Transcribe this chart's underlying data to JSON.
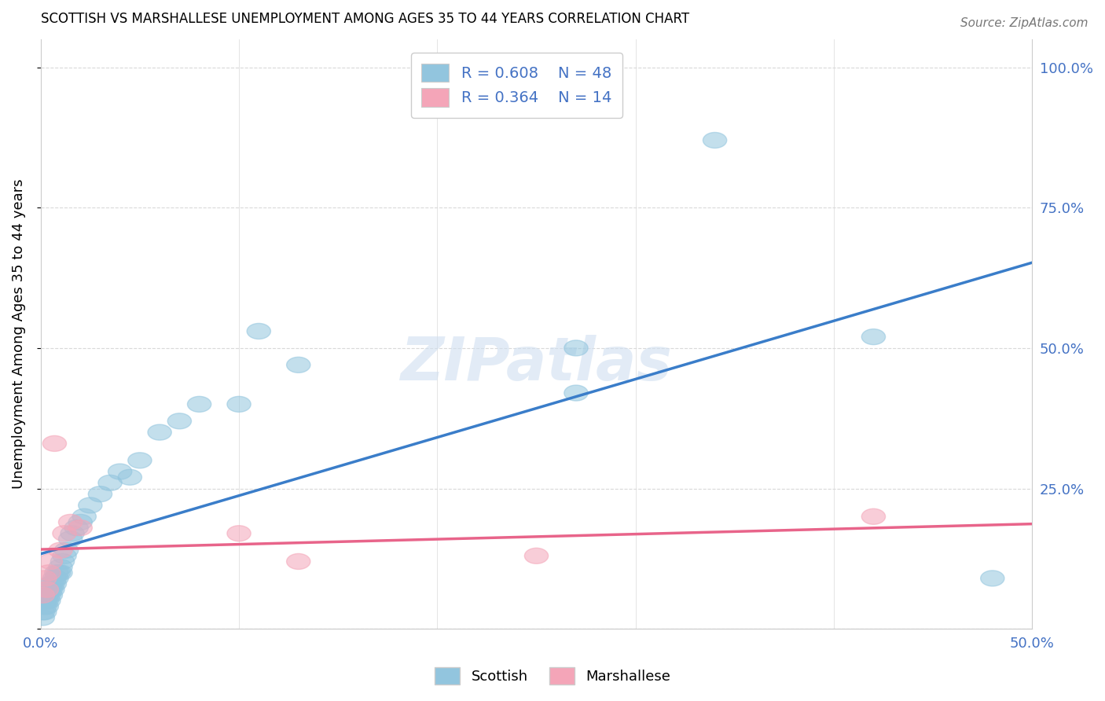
{
  "title": "SCOTTISH VS MARSHALLESE UNEMPLOYMENT AMONG AGES 35 TO 44 YEARS CORRELATION CHART",
  "source": "Source: ZipAtlas.com",
  "ylabel": "Unemployment Among Ages 35 to 44 years",
  "xlim": [
    0.0,
    0.5
  ],
  "ylim": [
    0.0,
    1.05
  ],
  "yticks": [
    0.25,
    0.5,
    0.75,
    1.0
  ],
  "ytick_labels": [
    "25.0%",
    "50.0%",
    "75.0%",
    "100.0%"
  ],
  "xtick_labels": [
    "0.0%",
    "50.0%"
  ],
  "xtick_positions": [
    0.0,
    0.5
  ],
  "scottish_color": "#92c5de",
  "marshallese_color": "#f4a5b8",
  "scottish_line_color": "#3a7dc9",
  "marshallese_line_color": "#e8648a",
  "watermark": "ZIPatlas",
  "tick_color": "#4472c4",
  "grid_color": "#d9d9d9",
  "scottish_x": [
    0.001,
    0.001,
    0.002,
    0.002,
    0.002,
    0.003,
    0.003,
    0.003,
    0.004,
    0.004,
    0.004,
    0.005,
    0.005,
    0.005,
    0.006,
    0.006,
    0.007,
    0.007,
    0.008,
    0.008,
    0.009,
    0.01,
    0.01,
    0.011,
    0.012,
    0.013,
    0.015,
    0.016,
    0.018,
    0.02,
    0.022,
    0.025,
    0.03,
    0.035,
    0.04,
    0.045,
    0.05,
    0.06,
    0.07,
    0.08,
    0.1,
    0.11,
    0.13,
    0.27,
    0.27,
    0.34,
    0.42,
    0.48
  ],
  "scottish_y": [
    0.02,
    0.03,
    0.03,
    0.04,
    0.05,
    0.04,
    0.05,
    0.06,
    0.05,
    0.06,
    0.07,
    0.06,
    0.07,
    0.08,
    0.07,
    0.08,
    0.08,
    0.09,
    0.09,
    0.1,
    0.1,
    0.1,
    0.11,
    0.12,
    0.13,
    0.14,
    0.16,
    0.17,
    0.18,
    0.19,
    0.2,
    0.22,
    0.24,
    0.26,
    0.28,
    0.27,
    0.3,
    0.35,
    0.37,
    0.4,
    0.4,
    0.53,
    0.47,
    0.42,
    0.5,
    0.87,
    0.52,
    0.09
  ],
  "marshallese_x": [
    0.001,
    0.002,
    0.003,
    0.004,
    0.005,
    0.007,
    0.01,
    0.012,
    0.015,
    0.02,
    0.1,
    0.13,
    0.25,
    0.42
  ],
  "marshallese_y": [
    0.06,
    0.09,
    0.07,
    0.1,
    0.12,
    0.33,
    0.14,
    0.17,
    0.19,
    0.18,
    0.17,
    0.12,
    0.13,
    0.2
  ]
}
